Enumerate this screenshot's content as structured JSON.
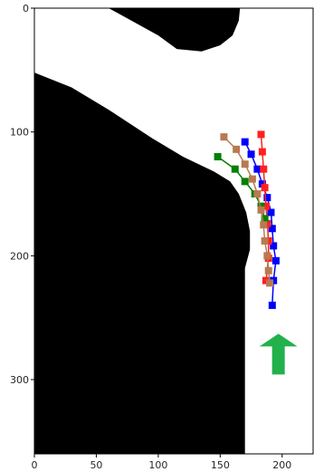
{
  "chart_data": {
    "type": "scatter",
    "title": "",
    "xlabel": "",
    "ylabel": "",
    "xlim": [
      0,
      225
    ],
    "ylim": [
      360,
      0
    ],
    "xticks": [
      0,
      50,
      100,
      150,
      200
    ],
    "yticks": [
      0,
      100,
      200,
      300
    ],
    "grid": false,
    "background_map": {
      "description_colors": {
        "free": "#ffffff",
        "obstacle": "#000000"
      },
      "obstacles": [
        {
          "name": "obstacle-top",
          "points": [
            [
              60,
              0
            ],
            [
              100,
              22
            ],
            [
              115,
              33
            ],
            [
              135,
              35
            ],
            [
              150,
              30
            ],
            [
              160,
              22
            ],
            [
              165,
              10
            ],
            [
              166,
              0
            ]
          ]
        },
        {
          "name": "obstacle-left",
          "points": [
            [
              0,
              52
            ],
            [
              30,
              64
            ],
            [
              60,
              82
            ],
            [
              95,
              105
            ],
            [
              120,
              120
            ],
            [
              145,
              132
            ],
            [
              158,
              140
            ],
            [
              165,
              150
            ],
            [
              171,
              165
            ],
            [
              174,
              180
            ],
            [
              174,
              195
            ],
            [
              170,
              210
            ],
            [
              170,
              360
            ],
            [
              0,
              360
            ]
          ]
        }
      ]
    },
    "series": [
      {
        "color": "#0000ff",
        "values": [
          [
            170,
            108
          ],
          [
            175,
            118
          ],
          [
            180,
            130
          ],
          [
            184,
            142
          ],
          [
            188,
            153
          ],
          [
            191,
            165
          ],
          [
            192,
            178
          ],
          [
            193,
            192
          ],
          [
            195,
            204
          ],
          [
            193,
            220
          ],
          [
            192,
            240
          ]
        ]
      },
      {
        "color": "#ff2020",
        "values": [
          [
            183,
            102
          ],
          [
            184,
            116
          ],
          [
            185,
            130
          ],
          [
            186,
            145
          ],
          [
            187,
            160
          ],
          [
            188,
            174
          ],
          [
            189,
            188
          ],
          [
            189,
            202
          ],
          [
            187,
            220
          ]
        ]
      },
      {
        "color": "#008000",
        "values": [
          [
            148,
            120
          ],
          [
            162,
            130
          ],
          [
            170,
            140
          ],
          [
            178,
            150
          ],
          [
            183,
            160
          ],
          [
            186,
            170
          ]
        ]
      },
      {
        "color": "#b87a50",
        "values": [
          [
            153,
            104
          ],
          [
            163,
            114
          ],
          [
            170,
            126
          ],
          [
            176,
            138
          ],
          [
            180,
            150
          ],
          [
            183,
            163
          ],
          [
            185,
            175
          ],
          [
            186,
            188
          ],
          [
            188,
            200
          ],
          [
            189,
            212
          ],
          [
            190,
            222
          ]
        ]
      }
    ],
    "arrow": {
      "color": "#22b14c",
      "x": 197,
      "y_tip": 263,
      "y_base": 290,
      "direction": "up"
    }
  }
}
